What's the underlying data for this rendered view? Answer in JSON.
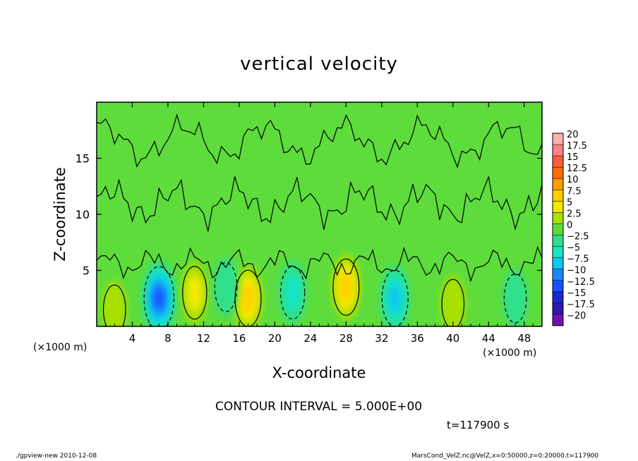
{
  "title": "vertical velocity",
  "contour_note": "CONTOUR INTERVAL = 5.000E+00",
  "time_label": "t=117900 s",
  "footer_left": "./gpview-new  2010-12-08",
  "footer_right": "MarsCond_VelZ.nc@VelZ,x=0:50000,z=0:20000,t=117900",
  "colors": {
    "frame": "#000000",
    "background_field": "#5ddc3c",
    "contour_line": "#000000"
  },
  "chart_data": {
    "type": "heatmap",
    "title": "vertical velocity",
    "xlabel": "X-coordinate",
    "ylabel": "Z-coordinate",
    "x_unit_label": "(×1000 m)",
    "y_unit_label": "(×1000 m)",
    "xlim": [
      0,
      50
    ],
    "ylim": [
      0,
      20
    ],
    "x_ticks": [
      4,
      8,
      12,
      16,
      20,
      24,
      28,
      32,
      36,
      40,
      44,
      48
    ],
    "y_ticks": [
      5,
      10,
      15
    ],
    "contour_interval": 5,
    "colorbar": {
      "levels": [
        20,
        17.5,
        15,
        12.5,
        10,
        7.5,
        5,
        2.5,
        0,
        -2.5,
        -5,
        -7.5,
        -10,
        -12.5,
        -15,
        -17.5,
        -20
      ],
      "level_labels": [
        "20",
        "17.5",
        "15",
        "12.5",
        "10",
        "7.5",
        "5",
        "2.5",
        "0",
        "−2.5",
        "−5",
        "−7.5",
        "−10",
        "−12.5",
        "−15",
        "−17.5",
        "−20"
      ],
      "colors": [
        "#ffb0b0",
        "#ff8080",
        "#ff5c3c",
        "#ff6c00",
        "#ff9c00",
        "#ffd000",
        "#f4e800",
        "#a8e000",
        "#5ddc3c",
        "#2ee08c",
        "#18e4c8",
        "#10c8f0",
        "#1888ff",
        "#1850ff",
        "#1828d0",
        "#3018b0",
        "#7010b0"
      ]
    },
    "features": [
      {
        "kind": "updraft",
        "x": 28,
        "z": 3.5,
        "peak": 7.5
      },
      {
        "kind": "updraft",
        "x": 17,
        "z": 2.5,
        "peak": 7.5
      },
      {
        "kind": "updraft",
        "x": 11,
        "z": 3,
        "peak": 5
      },
      {
        "kind": "updraft",
        "x": 40,
        "z": 2,
        "peak": 2.5
      },
      {
        "kind": "updraft",
        "x": 2,
        "z": 1.5,
        "peak": 2.5
      },
      {
        "kind": "downdraft",
        "x": 7,
        "z": 2.5,
        "peak": -12.5
      },
      {
        "kind": "downdraft",
        "x": 33.5,
        "z": 2.5,
        "peak": -7.5
      },
      {
        "kind": "downdraft",
        "x": 22,
        "z": 3,
        "peak": -5
      },
      {
        "kind": "downdraft",
        "x": 14.5,
        "z": 3.5,
        "peak": -2.5
      },
      {
        "kind": "downdraft",
        "x": 47,
        "z": 2.5,
        "peak": -2.5
      }
    ]
  }
}
